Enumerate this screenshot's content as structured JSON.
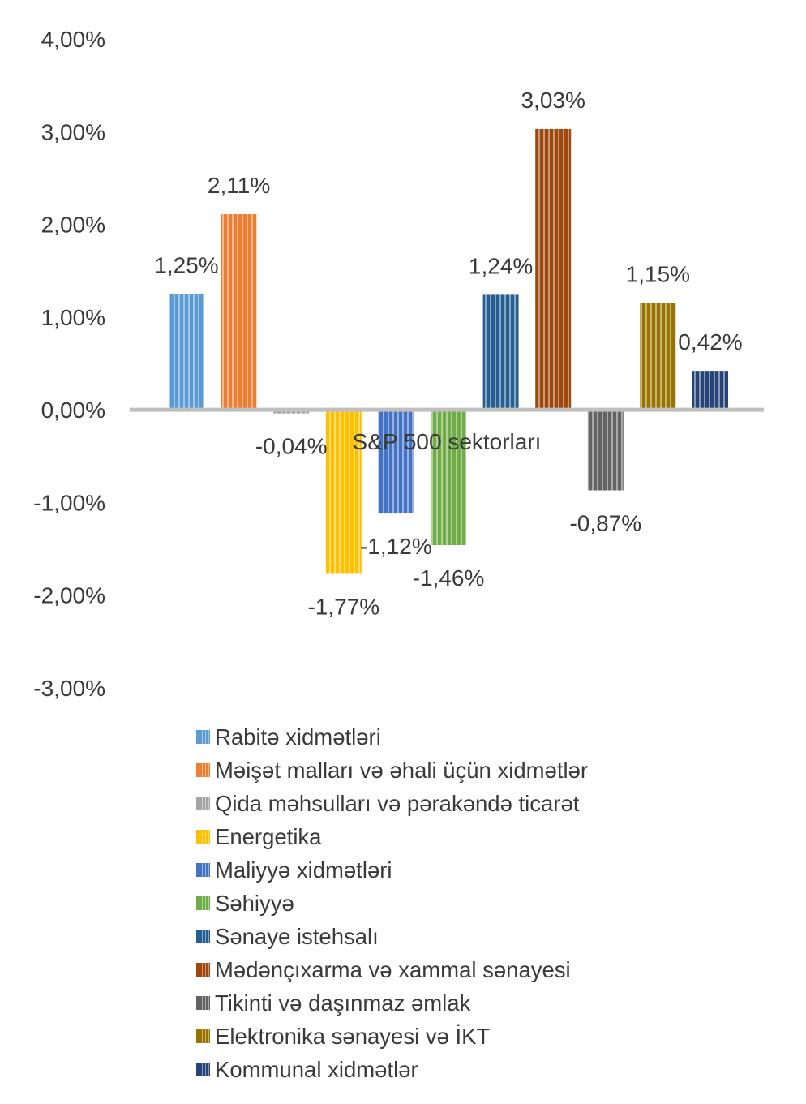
{
  "chart_data": {
    "type": "bar",
    "xlabel": "S&P 500 sektorları",
    "ylim": [
      -3.0,
      4.0
    ],
    "yticks": [
      4.0,
      3.0,
      2.0,
      1.0,
      0.0,
      -1.0,
      -2.0,
      -3.0
    ],
    "ytick_labels": [
      "4,00%",
      "3,00%",
      "2,00%",
      "1,00%",
      "0,00%",
      "-1,00%",
      "-2,00%",
      "-3,00%"
    ],
    "grid": false,
    "legend_position": "bottom",
    "series": [
      {
        "name": "Rabitə xidmətləri",
        "value": 1.25,
        "label": "1,25%",
        "color": "#5b9bd5"
      },
      {
        "name": "Məişət malları və əhali üçün xidmətlər",
        "value": 2.11,
        "label": "2,11%",
        "color": "#ed7d31"
      },
      {
        "name": "Qida məhsulları və pərakəndə ticarət",
        "value": -0.04,
        "label": "-0,04%",
        "color": "#a5a5a5"
      },
      {
        "name": "Energetika",
        "value": -1.77,
        "label": "-1,77%",
        "color": "#ffc000"
      },
      {
        "name": "Maliyyə xidmətləri",
        "value": -1.12,
        "label": "-1,12%",
        "color": "#4472c4"
      },
      {
        "name": "Səhiyyə",
        "value": -1.46,
        "label": "-1,46%",
        "color": "#70ad47"
      },
      {
        "name": "Sənaye istehsalı",
        "value": 1.24,
        "label": "1,24%",
        "color": "#255e91"
      },
      {
        "name": "Mədənçıxarma və xammal sənayesi",
        "value": 3.03,
        "label": "3,03%",
        "color": "#9e480e"
      },
      {
        "name": "Tikinti və daşınmaz əmlak",
        "value": -0.87,
        "label": "-0,87%",
        "color": "#636363"
      },
      {
        "name": "Elektronika sənayesi və İKT",
        "value": 1.15,
        "label": "1,15%",
        "color": "#997300"
      },
      {
        "name": "Kommunal xidmətlər",
        "value": 0.42,
        "label": "0,42%",
        "color": "#264478"
      }
    ],
    "axis_color": "#bfbfbf"
  }
}
